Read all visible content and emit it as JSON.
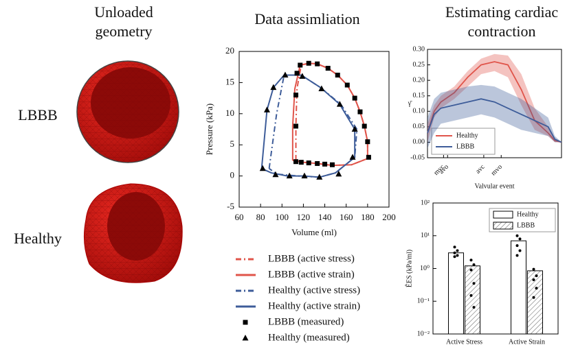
{
  "figure": {
    "left_title": [
      "Unloaded",
      "geometry"
    ],
    "right_title": [
      "Estimating cardiac",
      "contraction"
    ],
    "row_labels": [
      "LBBB",
      "Healthy"
    ]
  },
  "chart_data": [
    {
      "type": "line",
      "title": "Data assimliation",
      "x_label": "Volume (ml)",
      "y_label": "Pressure (kPa)",
      "xlim": [
        60,
        200
      ],
      "xticks": [
        60,
        80,
        100,
        120,
        140,
        160,
        180,
        200
      ],
      "ylim": [
        -5,
        20
      ],
      "yticks": [
        -5,
        0,
        5,
        10,
        15,
        20
      ],
      "series": [
        {
          "name": "LBBB (active stress)",
          "color": "#e0544a",
          "linestyle": "dashdot",
          "x": [
            113,
            113,
            114,
            118,
            125,
            133,
            143,
            152,
            161,
            168,
            173,
            177,
            180,
            180,
            165,
            147,
            133,
            120,
            113
          ],
          "values": [
            2.5,
            8,
            14,
            17.8,
            18.1,
            18,
            17.3,
            16.2,
            14.6,
            12.5,
            10.3,
            8,
            5.5,
            2.8,
            1.8,
            1.7,
            2,
            2.2,
            2.5
          ]
        },
        {
          "name": "LBBB (active strain)",
          "color": "#e0544a",
          "linestyle": "solid",
          "x": [
            110,
            110,
            112,
            117,
            125,
            133,
            143,
            152,
            161,
            168,
            173,
            177,
            180,
            180,
            165,
            147,
            133,
            120,
            110
          ],
          "values": [
            2.5,
            8,
            14,
            17.8,
            18.1,
            18,
            17.3,
            16.2,
            14.6,
            12.5,
            10.3,
            8,
            5.5,
            2.8,
            1.8,
            1.7,
            2,
            2.2,
            2.5
          ]
        },
        {
          "name": "Healthy (active stress)",
          "color": "#3d5c99",
          "linestyle": "dashdot",
          "x": [
            88,
            95,
            102,
            118,
            136,
            155,
            170,
            168,
            150,
            135,
            115,
            95,
            88
          ],
          "values": [
            1.2,
            10,
            16.2,
            16.2,
            14.2,
            11.5,
            7.5,
            3,
            0.5,
            -0.2,
            0,
            0.3,
            1.2
          ]
        },
        {
          "name": "Healthy (active strain)",
          "color": "#3d5c99",
          "linestyle": "solid",
          "x": [
            81,
            86,
            92,
            102,
            118,
            136,
            154,
            168,
            168,
            150,
            135,
            120,
            105,
            90,
            81
          ],
          "values": [
            1.2,
            10.6,
            14.2,
            16.2,
            16.2,
            14.2,
            11.5,
            7.5,
            3,
            0.5,
            -0.2,
            0,
            0,
            0.5,
            1.2
          ]
        },
        {
          "name": "LBBB (measured)",
          "color": "#000000",
          "marker": "square",
          "x": [
            113,
            113,
            113,
            114,
            117,
            125,
            133,
            143,
            152,
            161,
            168,
            173,
            177,
            180,
            181,
            147,
            140,
            133,
            125,
            118
          ],
          "values": [
            2.3,
            8,
            13,
            16.5,
            17.8,
            18.1,
            18,
            17.3,
            16.2,
            14.6,
            12.5,
            10.3,
            8,
            5.5,
            3,
            1.8,
            1.9,
            2,
            2.1,
            2.2
          ]
        },
        {
          "name": "Healthy (measured)",
          "color": "#000000",
          "marker": "triangle",
          "x": [
            82,
            86,
            92,
            103,
            119,
            137,
            154,
            168,
            166,
            153,
            135,
            121,
            107,
            94
          ],
          "values": [
            1.2,
            10.6,
            14.2,
            16.2,
            16,
            14,
            11.5,
            7.5,
            3,
            0.3,
            -0.2,
            0,
            0,
            0.2
          ]
        }
      ]
    },
    {
      "type": "band",
      "x_label": "Valvular event",
      "y_label": "γ̄",
      "xlim": [
        0,
        1
      ],
      "xticks": [
        {
          "value": 0.12,
          "label": "mvc"
        },
        {
          "value": 0.15,
          "label": "avo"
        },
        {
          "value": 0.42,
          "label": "avc"
        },
        {
          "value": 0.55,
          "label": "mvo"
        }
      ],
      "ylim": [
        -0.05,
        0.3
      ],
      "yticks": [
        -0.05,
        {
          "value": 0,
          "label": "0.00"
        },
        0.05,
        {
          "value": 0.1,
          "label": "0.10"
        },
        0.15,
        {
          "value": 0.2,
          "label": "0.20"
        },
        0.25,
        {
          "value": 0.3,
          "label": "0.30"
        }
      ],
      "x": [
        0,
        0.05,
        0.1,
        0.2,
        0.3,
        0.4,
        0.5,
        0.6,
        0.7,
        0.8,
        0.9,
        0.95,
        1
      ],
      "series": [
        {
          "name": "Healthy",
          "color": "#e0544a",
          "values": [
            0.03,
            0.1,
            0.13,
            0.16,
            0.21,
            0.25,
            0.26,
            0.25,
            0.17,
            0.07,
            0.03,
            0.005,
            0
          ],
          "lower": [
            0,
            0.08,
            0.11,
            0.14,
            0.18,
            0.22,
            0.23,
            0.21,
            0.12,
            0.04,
            0.02,
            0,
            0
          ],
          "upper": [
            0.06,
            0.12,
            0.15,
            0.18,
            0.23,
            0.27,
            0.285,
            0.28,
            0.22,
            0.11,
            0.05,
            0.01,
            0
          ]
        },
        {
          "name": "LBBB",
          "color": "#3d5c99",
          "values": [
            0.03,
            0.09,
            0.11,
            0.12,
            0.13,
            0.14,
            0.13,
            0.11,
            0.09,
            0.07,
            0.05,
            0.01,
            0
          ],
          "lower": [
            -0.02,
            0.03,
            0.06,
            0.07,
            0.08,
            0.09,
            0.08,
            0.06,
            0.04,
            0.03,
            0.02,
            0,
            0
          ],
          "upper": [
            0.08,
            0.14,
            0.16,
            0.17,
            0.18,
            0.185,
            0.18,
            0.16,
            0.14,
            0.11,
            0.08,
            0.02,
            0
          ]
        }
      ]
    },
    {
      "type": "logbar",
      "y_label": "ÊES (kPa/ml)",
      "log_scale": true,
      "categories": [
        "Active Stress",
        "Active Strain"
      ],
      "ylim": [
        0.01,
        100
      ],
      "yticks": [
        {
          "value": 0.01,
          "label": "10⁻²"
        },
        {
          "value": 0.1,
          "label": "10⁻¹"
        },
        {
          "value": 1,
          "label": "10⁰"
        },
        {
          "value": 10,
          "label": "10¹"
        },
        {
          "value": 100,
          "label": "10²"
        }
      ],
      "series": [
        {
          "name": "Healthy",
          "color": "#ffffff",
          "values": [
            3,
            7
          ],
          "points": [
            [
              4.5,
              3.5,
              3,
              2.5,
              2.3
            ],
            [
              10,
              8,
              5,
              3.5,
              2.5
            ]
          ]
        },
        {
          "name": "LBBB",
          "color": "#ffffff",
          "hatch": true,
          "values": [
            1.2,
            0.85
          ],
          "points": [
            [
              1.8,
              1.3,
              0.9,
              0.35,
              0.15,
              0.065
            ],
            [
              0.95,
              0.6,
              0.45,
              0.25,
              0.13
            ]
          ]
        }
      ]
    }
  ]
}
